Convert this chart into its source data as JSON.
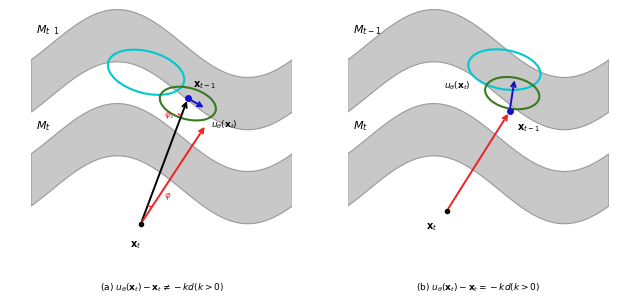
{
  "background_color": "#ffffff",
  "manifold_color": "#c8c8c8",
  "manifold_edge_color": "#999999",
  "cyan_ellipse_color": "#00c8d0",
  "green_ellipse_color": "#3a7a20",
  "red_arrow_color": "#ee2222",
  "blue_arrow_color": "#1111cc",
  "black_arrow_color": "#000000",
  "dot_color": "#1111cc",
  "xt_dot_color": "#000000",
  "label_a": "(a) $u_{\\theta}(\\mathbf{x}_t) - \\mathbf{x}_t \\neq -kd(k > 0)$",
  "label_b": "(b) $u_{\\theta}(\\mathbf{x}_t) - \\mathbf{x}_t = -kd(k > 0)$"
}
